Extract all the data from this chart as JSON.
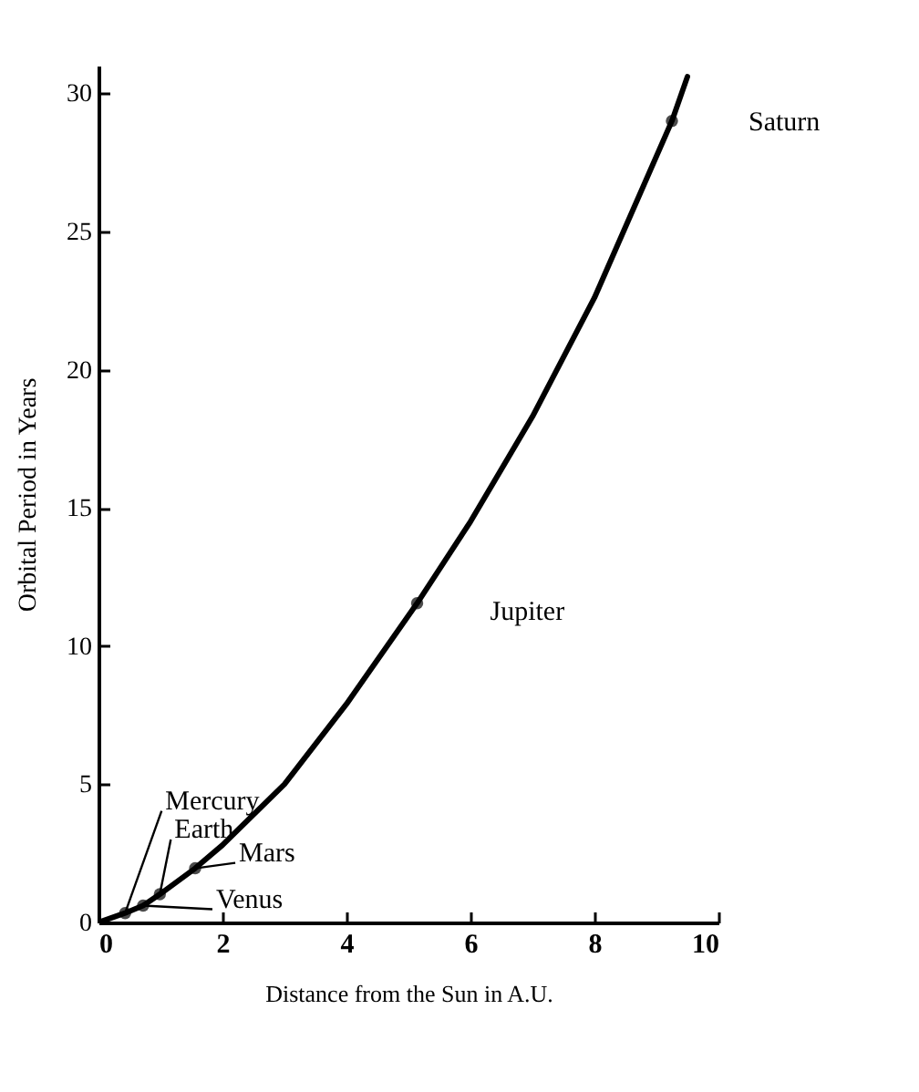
{
  "chart_data": {
    "type": "line",
    "xlabel": "Distance  from  the  Sun  in  A.U.",
    "ylabel": "Orbital Period in Years",
    "xlim": [
      0,
      10
    ],
    "ylim": [
      0,
      31
    ],
    "xticks": [
      0,
      2,
      4,
      6,
      8,
      10
    ],
    "yticks": [
      0,
      5,
      10,
      15,
      20,
      25,
      30
    ],
    "grid": false,
    "series": [
      {
        "type": "line",
        "color": "#000000",
        "line_style": "solid",
        "x": [
          0,
          0.43,
          0.72,
          0.99,
          1.56,
          2,
          3,
          4,
          5.14,
          6,
          7,
          8,
          9.25,
          9.5
        ],
        "values": [
          0,
          0.34,
          0.61,
          1.02,
          1.96,
          2.8,
          5,
          7.9,
          11.55,
          14.5,
          18.3,
          22.6,
          29,
          30.6
        ]
      },
      {
        "type": "scatter",
        "color": "#000000",
        "marker": "circle",
        "x": [
          0.43,
          0.72,
          0.99,
          1.56,
          5.14,
          9.25
        ],
        "values": [
          0.34,
          0.61,
          1.02,
          1.96,
          11.55,
          29
        ]
      }
    ],
    "annotations": [
      {
        "text": "Mercury",
        "x": 0.43,
        "y": 0.34
      },
      {
        "text": "Venus",
        "x": 0.72,
        "y": 0.61
      },
      {
        "text": "Earth",
        "x": 0.99,
        "y": 1.02
      },
      {
        "text": "Mars",
        "x": 1.56,
        "y": 1.96
      },
      {
        "text": "Jupiter",
        "x": 5.14,
        "y": 11.55
      },
      {
        "text": "Saturn",
        "x": 9.25,
        "y": 29
      }
    ]
  }
}
